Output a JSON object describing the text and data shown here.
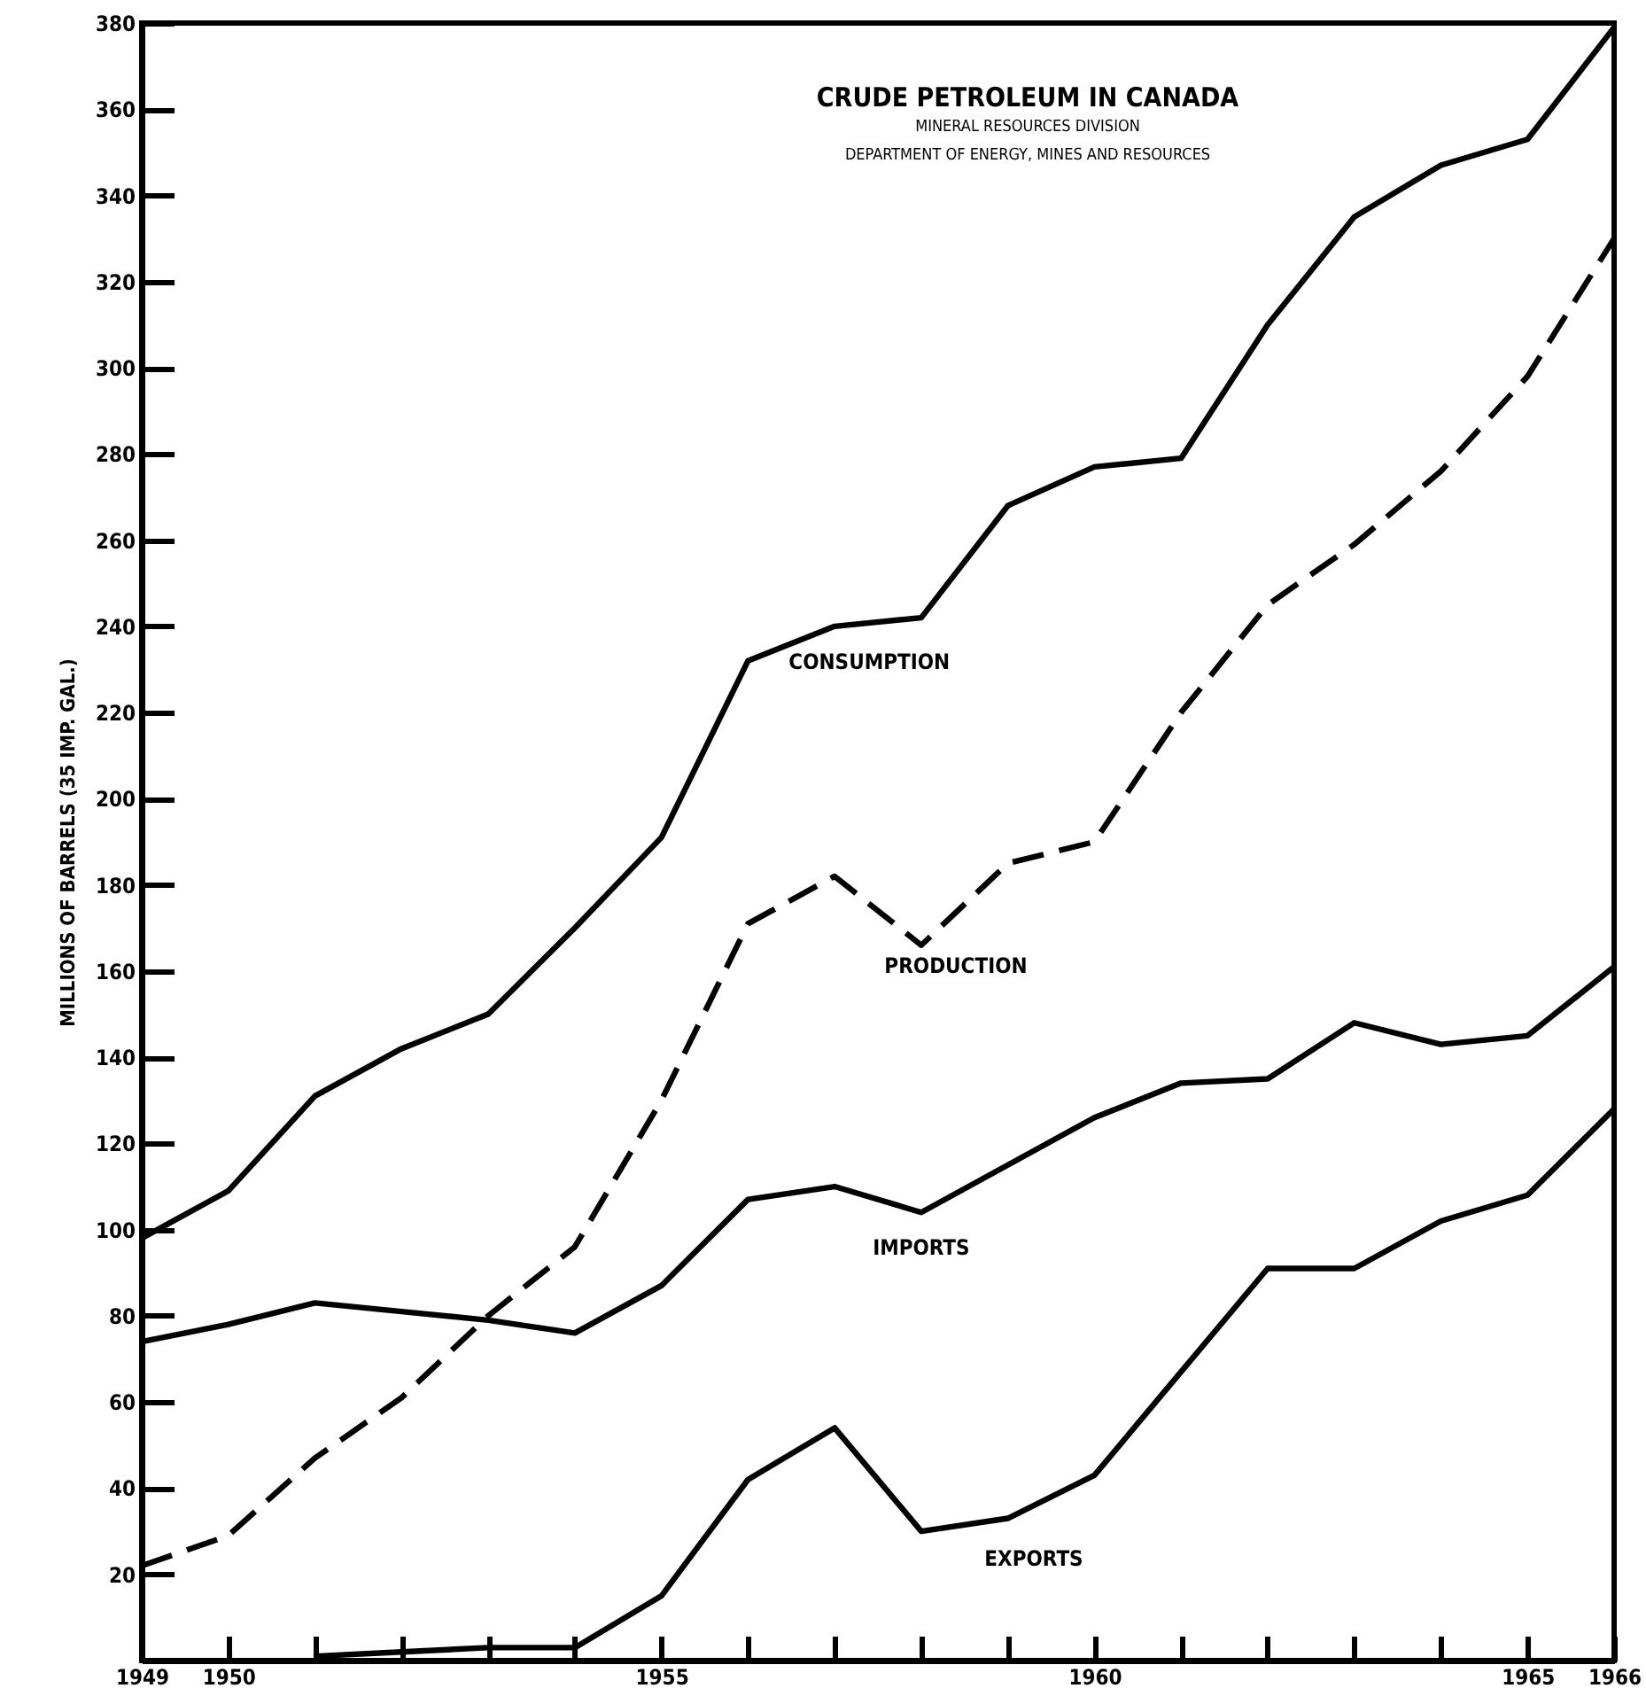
{
  "chart_data": {
    "type": "line",
    "title": "CRUDE PETROLEUM IN CANADA",
    "subtitle": "MINERAL RESOURCES DIVISION",
    "annotations": [
      "DEPARTMENT OF ENERGY, MINES AND RESOURCES"
    ],
    "ylabel": "MILLIONS OF BARRELS (35 IMP. GAL.)",
    "x": [
      1949,
      1950,
      1951,
      1952,
      1953,
      1954,
      1955,
      1956,
      1957,
      1958,
      1959,
      1960,
      1961,
      1962,
      1963,
      1964,
      1965,
      1966
    ],
    "xlim": [
      1949,
      1966
    ],
    "xticks": [
      1949,
      1950,
      {
        "value": 1951,
        "label": null
      },
      {
        "value": 1952,
        "label": null
      },
      {
        "value": 1953,
        "label": null
      },
      {
        "value": 1954,
        "label": null
      },
      1955,
      {
        "value": 1956,
        "label": null
      },
      {
        "value": 1957,
        "label": null
      },
      {
        "value": 1958,
        "label": null
      },
      {
        "value": 1959,
        "label": null
      },
      1960,
      {
        "value": 1961,
        "label": null
      },
      {
        "value": 1962,
        "label": null
      },
      {
        "value": 1963,
        "label": null
      },
      {
        "value": 1964,
        "label": null
      },
      1965,
      1966
    ],
    "ylim": [
      0,
      380
    ],
    "yticks": [
      {
        "value": 0,
        "label": null
      },
      20,
      40,
      60,
      80,
      100,
      120,
      140,
      160,
      180,
      200,
      220,
      240,
      260,
      280,
      300,
      320,
      340,
      360,
      380
    ],
    "grid": false,
    "legend": false,
    "marker": "none",
    "series": [
      {
        "name": "CONSUMPTION",
        "color": "#000000",
        "line_style": "solid",
        "values": [
          98,
          109,
          131,
          142,
          150,
          170,
          191,
          232,
          240,
          242,
          268,
          277,
          279,
          310,
          335,
          347,
          353,
          379
        ]
      },
      {
        "name": "PRODUCTION",
        "color": "#000000",
        "line_style": "dashed",
        "values": [
          22,
          29,
          47,
          61,
          80,
          96,
          130,
          171,
          182,
          166,
          185,
          190,
          220,
          245,
          259,
          276,
          298,
          330
        ]
      },
      {
        "name": "IMPORTS",
        "color": "#000000",
        "line_style": "solid",
        "values": [
          74,
          78,
          83,
          81,
          79,
          76,
          87,
          107,
          110,
          104,
          115,
          126,
          134,
          135,
          148,
          143,
          145,
          161
        ]
      },
      {
        "name": "EXPORTS",
        "color": "#000000",
        "line_style": "solid",
        "values": [
          null,
          null,
          1,
          2,
          3,
          3,
          15,
          42,
          54,
          30,
          33,
          43,
          67,
          91,
          91,
          102,
          108,
          128
        ]
      }
    ]
  }
}
